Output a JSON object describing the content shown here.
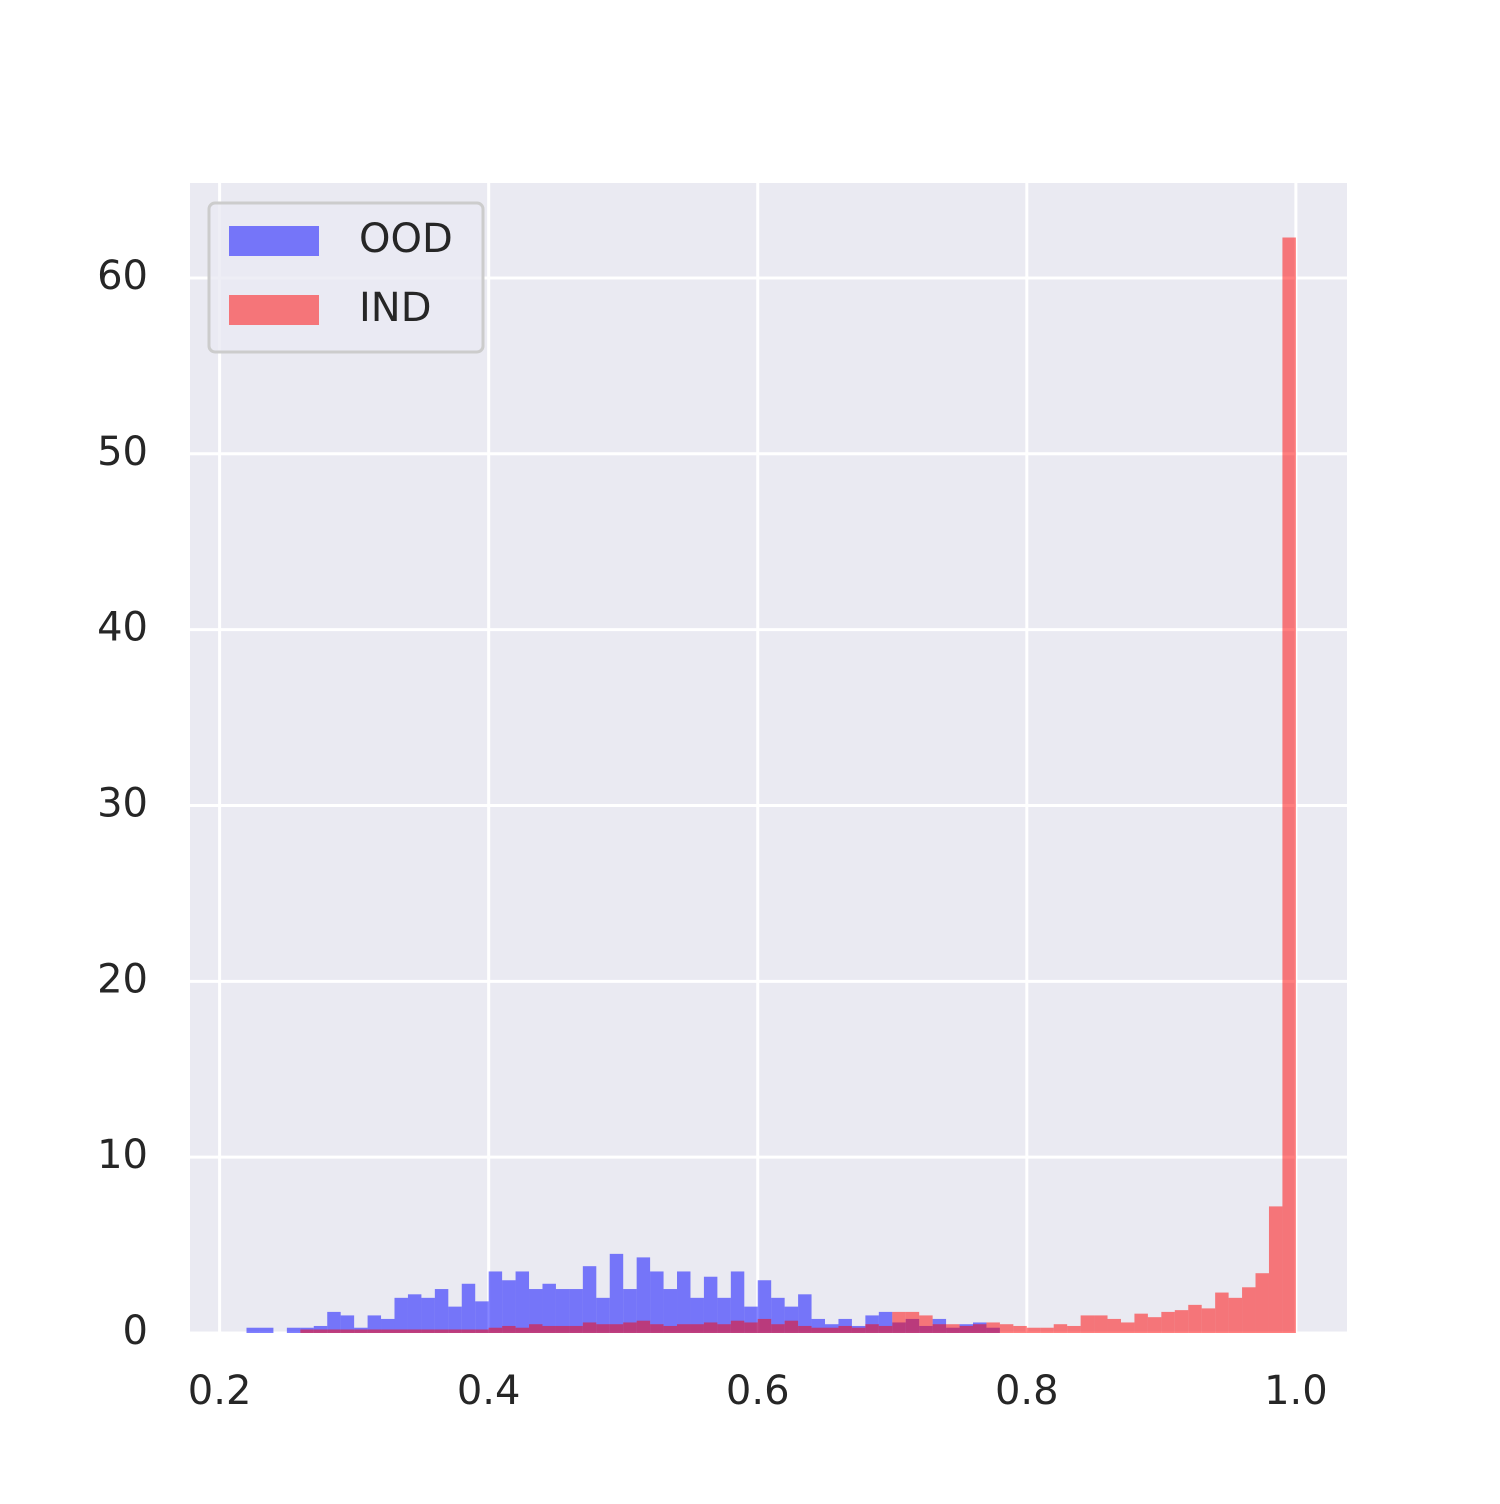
{
  "chart_data": {
    "type": "histogram",
    "bins": [
      0.2,
      0.21,
      0.22,
      0.23,
      0.24,
      0.25,
      0.26,
      0.27,
      0.28,
      0.29,
      0.3,
      0.31,
      0.32,
      0.33,
      0.34,
      0.35,
      0.36,
      0.37,
      0.38,
      0.39,
      0.4,
      0.41,
      0.42,
      0.43,
      0.44,
      0.45,
      0.46,
      0.47,
      0.48,
      0.49,
      0.5,
      0.51,
      0.52,
      0.53,
      0.54,
      0.55,
      0.56,
      0.57,
      0.58,
      0.59,
      0.6,
      0.61,
      0.62,
      0.63,
      0.64,
      0.65,
      0.66,
      0.67,
      0.68,
      0.69,
      0.7,
      0.71,
      0.72,
      0.73,
      0.74,
      0.75,
      0.76,
      0.77,
      0.78,
      0.79,
      0.8,
      0.81,
      0.82,
      0.83,
      0.84,
      0.85,
      0.86,
      0.87,
      0.88,
      0.89,
      0.9,
      0.91,
      0.92,
      0.93,
      0.94,
      0.95,
      0.96,
      0.97,
      0.98,
      0.99,
      1.0
    ],
    "series": [
      {
        "name": "OOD",
        "color": "#0000ff",
        "values": [
          0,
          0,
          0.3,
          0.3,
          0,
          0.3,
          0.3,
          0.4,
          1.2,
          1.0,
          0.3,
          1.0,
          0.8,
          2.0,
          2.2,
          2.0,
          2.5,
          1.5,
          2.8,
          1.8,
          3.5,
          3.0,
          3.5,
          2.5,
          2.8,
          2.5,
          2.5,
          3.8,
          2.0,
          4.5,
          2.5,
          4.3,
          3.5,
          2.5,
          3.5,
          2.0,
          3.2,
          2.0,
          3.5,
          1.5,
          3.0,
          2.0,
          1.5,
          2.2,
          0.8,
          0.5,
          0.8,
          0.4,
          1.0,
          1.2,
          0.6,
          0.8,
          0.4,
          0.8,
          0.3,
          0.5,
          0.6,
          0.3,
          0,
          0,
          0,
          0,
          0,
          0,
          0,
          0,
          0,
          0,
          0,
          0,
          0,
          0,
          0,
          0,
          0,
          0,
          0,
          0,
          0,
          0
        ]
      },
      {
        "name": "IND",
        "color": "#ff0000",
        "values": [
          0,
          0,
          0,
          0,
          0,
          0,
          0.2,
          0.2,
          0.2,
          0.2,
          0.2,
          0.2,
          0.2,
          0.2,
          0.2,
          0.2,
          0.2,
          0.2,
          0.2,
          0.2,
          0.3,
          0.4,
          0.3,
          0.5,
          0.4,
          0.4,
          0.4,
          0.6,
          0.5,
          0.5,
          0.6,
          0.7,
          0.5,
          0.4,
          0.5,
          0.5,
          0.6,
          0.5,
          0.7,
          0.6,
          0.8,
          0.5,
          0.7,
          0.4,
          0.3,
          0.3,
          0.4,
          0.3,
          0.5,
          0.4,
          1.2,
          1.2,
          1.0,
          0.5,
          0.5,
          0.4,
          0.5,
          0.6,
          0.5,
          0.4,
          0.3,
          0.3,
          0.5,
          0.4,
          1.0,
          1.0,
          0.8,
          0.6,
          1.1,
          0.9,
          1.2,
          1.3,
          1.6,
          1.4,
          2.3,
          2.0,
          2.6,
          3.4,
          7.2,
          62.3
        ]
      }
    ],
    "opacity": 0.5,
    "xlim": [
      0.178,
      1.038
    ],
    "ylim": [
      0,
      65.4
    ],
    "xticks": [
      0.2,
      0.4,
      0.6,
      0.8,
      {
        "value": 1,
        "label": "1.0"
      }
    ],
    "yticks": [
      0,
      10,
      20,
      30,
      40,
      50,
      60
    ],
    "grid": true,
    "legend": "upper-left"
  }
}
